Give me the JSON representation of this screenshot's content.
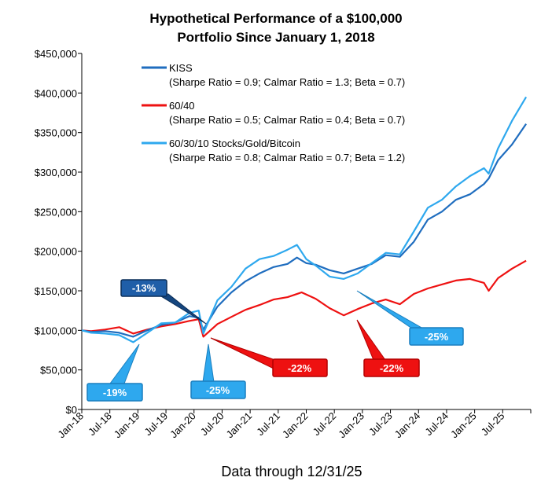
{
  "chart_data": {
    "type": "line",
    "title_line1": "Hypothetical Performance of a $100,000",
    "title_line2": "Portfolio Since January 1, 2018",
    "footer": "Data through 12/31/25",
    "ylim": [
      0,
      450000
    ],
    "y_ticks": [
      0,
      50000,
      100000,
      150000,
      200000,
      250000,
      300000,
      350000,
      400000,
      450000
    ],
    "y_tick_labels": [
      "$0",
      "$50,000",
      "$100,000",
      "$150,000",
      "$200,000",
      "$250,000",
      "$300,000",
      "$350,000",
      "$400,000",
      "$450,000"
    ],
    "x_tick_labels": [
      "Jan-18",
      "Jul-18",
      "Jan-19",
      "Jul-19",
      "Jan-20",
      "Jul-20",
      "Jan-21",
      "Jul-21",
      "Jan-22",
      "Jul-22",
      "Jan-23",
      "Jul-23",
      "Jan-24",
      "Jul-24",
      "Jan-25",
      "Jul-25"
    ],
    "x_ticks": [
      "2018-01",
      "2018-07",
      "2019-01",
      "2019-07",
      "2020-01",
      "2020-07",
      "2021-01",
      "2021-07",
      "2022-01",
      "2022-07",
      "2023-01",
      "2023-07",
      "2024-01",
      "2024-07",
      "2025-01",
      "2025-07"
    ],
    "x_range": [
      "2018-01",
      "2025-12"
    ],
    "grid": false,
    "legend_position": "top-left",
    "series": [
      {
        "name": "KISS",
        "stats": "(Sharpe Ratio = 0.9; Calmar Ratio = 1.3; Beta = 0.7)",
        "color": "#1f6dbf",
        "x": [
          "2018-01",
          "2018-03",
          "2018-06",
          "2018-09",
          "2018-12",
          "2019-03",
          "2019-06",
          "2019-09",
          "2019-12",
          "2020-02",
          "2020-03",
          "2020-06",
          "2020-09",
          "2020-12",
          "2021-03",
          "2021-06",
          "2021-09",
          "2021-11",
          "2022-01",
          "2022-03",
          "2022-06",
          "2022-09",
          "2022-12",
          "2023-03",
          "2023-06",
          "2023-09",
          "2023-12",
          "2024-03",
          "2024-06",
          "2024-09",
          "2024-12",
          "2025-03",
          "2025-04",
          "2025-06",
          "2025-09",
          "2025-12"
        ],
        "values": [
          100000,
          98000,
          99000,
          97000,
          92000,
          100000,
          107000,
          110000,
          118000,
          116000,
          101000,
          130000,
          148000,
          162000,
          172000,
          180000,
          184000,
          192000,
          185000,
          183000,
          176000,
          172000,
          178000,
          184000,
          195000,
          193000,
          212000,
          240000,
          250000,
          265000,
          272000,
          285000,
          292000,
          315000,
          335000,
          361000
        ]
      },
      {
        "name": "60/40",
        "stats": "(Sharpe Ratio = 0.5; Calmar Ratio = 0.4; Beta = 0.7)",
        "color": "#ee1111",
        "x": [
          "2018-01",
          "2018-03",
          "2018-06",
          "2018-09",
          "2018-12",
          "2019-03",
          "2019-06",
          "2019-09",
          "2019-12",
          "2020-02",
          "2020-03",
          "2020-06",
          "2020-09",
          "2020-12",
          "2021-03",
          "2021-06",
          "2021-09",
          "2021-12",
          "2022-03",
          "2022-06",
          "2022-09",
          "2022-12",
          "2023-03",
          "2023-06",
          "2023-09",
          "2023-12",
          "2024-03",
          "2024-06",
          "2024-09",
          "2024-12",
          "2025-03",
          "2025-04",
          "2025-06",
          "2025-09",
          "2025-12"
        ],
        "values": [
          100000,
          99000,
          101000,
          104000,
          96000,
          101000,
          105000,
          108000,
          112000,
          114000,
          92000,
          108000,
          117000,
          126000,
          132000,
          139000,
          142000,
          148000,
          140000,
          128000,
          119000,
          127000,
          134000,
          139000,
          133000,
          146000,
          153000,
          158000,
          163000,
          165000,
          160000,
          150000,
          166000,
          178000,
          188000
        ]
      },
      {
        "name": "60/30/10 Stocks/Gold/Bitcoin",
        "stats": "(Sharpe Ratio = 0.8; Calmar Ratio = 0.7; Beta = 1.2)",
        "color": "#2ea8ee",
        "x": [
          "2018-01",
          "2018-03",
          "2018-06",
          "2018-09",
          "2018-12",
          "2019-03",
          "2019-06",
          "2019-09",
          "2019-12",
          "2020-02",
          "2020-03",
          "2020-06",
          "2020-09",
          "2020-12",
          "2021-03",
          "2021-06",
          "2021-09",
          "2021-11",
          "2022-01",
          "2022-03",
          "2022-06",
          "2022-09",
          "2022-12",
          "2023-03",
          "2023-06",
          "2023-09",
          "2023-12",
          "2024-03",
          "2024-06",
          "2024-09",
          "2024-12",
          "2025-03",
          "2025-04",
          "2025-06",
          "2025-09",
          "2025-12"
        ],
        "values": [
          100000,
          97000,
          96000,
          94000,
          85000,
          97000,
          109000,
          110000,
          122000,
          125000,
          96000,
          138000,
          155000,
          178000,
          190000,
          194000,
          202000,
          208000,
          190000,
          182000,
          168000,
          165000,
          172000,
          185000,
          198000,
          196000,
          225000,
          255000,
          265000,
          282000,
          295000,
          305000,
          298000,
          330000,
          365000,
          395000
        ]
      }
    ],
    "annotations": [
      {
        "label": "-13%",
        "color": "#1f6dbf"
      },
      {
        "label": "-19%",
        "color": "#2ea8ee"
      },
      {
        "label": "-25%",
        "color": "#2ea8ee"
      },
      {
        "label": "-22%",
        "color": "#ee1111"
      },
      {
        "label": "-22%",
        "color": "#ee1111"
      },
      {
        "label": "-25%",
        "color": "#2ea8ee"
      }
    ]
  }
}
